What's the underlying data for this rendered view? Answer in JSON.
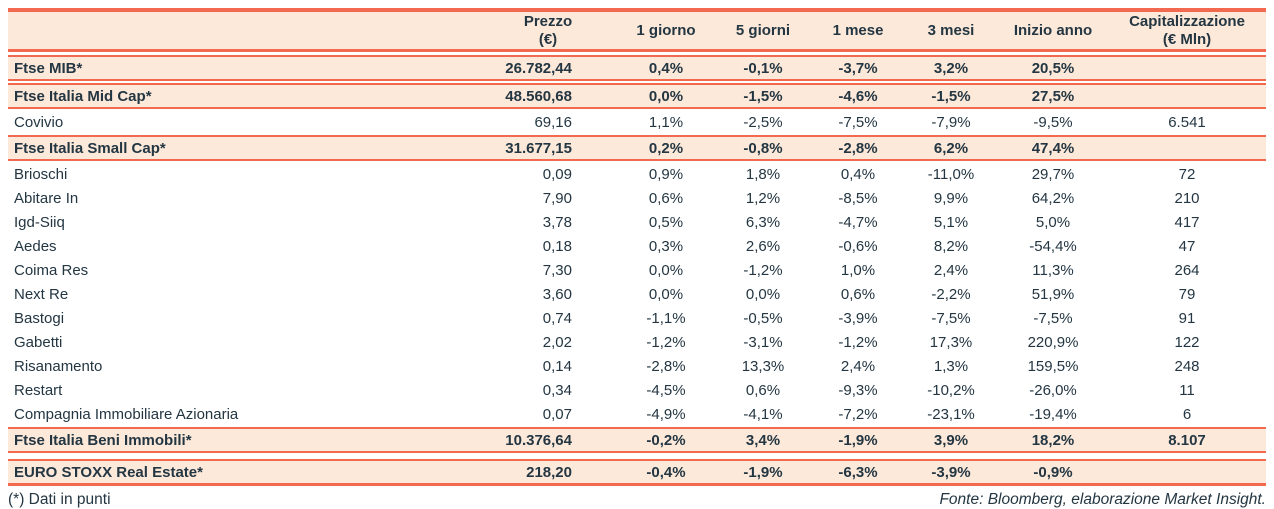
{
  "colors": {
    "accent": "#f26950",
    "row_highlight_bg": "#fce9da",
    "text": "#233642"
  },
  "table": {
    "columns": [
      {
        "key": "name",
        "label": "",
        "sublabel": ""
      },
      {
        "key": "prezzo",
        "label": "Prezzo",
        "sublabel": "(€)"
      },
      {
        "key": "g1",
        "label": "1 giorno",
        "sublabel": ""
      },
      {
        "key": "g5",
        "label": "5 giorni",
        "sublabel": ""
      },
      {
        "key": "m1",
        "label": "1 mese",
        "sublabel": ""
      },
      {
        "key": "m3",
        "label": "3 mesi",
        "sublabel": ""
      },
      {
        "key": "inizio",
        "label": "Inizio anno",
        "sublabel": ""
      },
      {
        "key": "cap",
        "label": "Capitalizzazione",
        "sublabel": "(€ Mln)"
      }
    ],
    "rows": [
      {
        "type": "index",
        "name": "Ftse MIB*",
        "prezzo": "26.782,44",
        "g1": "0,4%",
        "g5": "-0,1%",
        "m1": "-3,7%",
        "m3": "3,2%",
        "inizio": "20,5%",
        "cap": ""
      },
      {
        "type": "index",
        "name": "Ftse Italia Mid Cap*",
        "prezzo": "48.560,68",
        "g1": "0,0%",
        "g5": "-1,5%",
        "m1": "-4,6%",
        "m3": "-1,5%",
        "inizio": "27,5%",
        "cap": ""
      },
      {
        "type": "stock",
        "name": "Covivio",
        "prezzo": "69,16",
        "g1": "1,1%",
        "g5": "-2,5%",
        "m1": "-7,5%",
        "m3": "-7,9%",
        "inizio": "-9,5%",
        "cap": "6.541"
      },
      {
        "type": "index",
        "name": "Ftse Italia Small Cap*",
        "prezzo": "31.677,15",
        "g1": "0,2%",
        "g5": "-0,8%",
        "m1": "-2,8%",
        "m3": "6,2%",
        "inizio": "47,4%",
        "cap": ""
      },
      {
        "type": "stock",
        "name": "Brioschi",
        "prezzo": "0,09",
        "g1": "0,9%",
        "g5": "1,8%",
        "m1": "0,4%",
        "m3": "-11,0%",
        "inizio": "29,7%",
        "cap": "72"
      },
      {
        "type": "stock",
        "name": "Abitare In",
        "prezzo": "7,90",
        "g1": "0,6%",
        "g5": "1,2%",
        "m1": "-8,5%",
        "m3": "9,9%",
        "inizio": "64,2%",
        "cap": "210"
      },
      {
        "type": "stock",
        "name": "Igd-Siiq",
        "prezzo": "3,78",
        "g1": "0,5%",
        "g5": "6,3%",
        "m1": "-4,7%",
        "m3": "5,1%",
        "inizio": "5,0%",
        "cap": "417"
      },
      {
        "type": "stock",
        "name": "Aedes",
        "prezzo": "0,18",
        "g1": "0,3%",
        "g5": "2,6%",
        "m1": "-0,6%",
        "m3": "8,2%",
        "inizio": "-54,4%",
        "cap": "47"
      },
      {
        "type": "stock",
        "name": "Coima Res",
        "prezzo": "7,30",
        "g1": "0,0%",
        "g5": "-1,2%",
        "m1": "1,0%",
        "m3": "2,4%",
        "inizio": "11,3%",
        "cap": "264"
      },
      {
        "type": "stock",
        "name": "Next Re",
        "prezzo": "3,60",
        "g1": "0,0%",
        "g5": "0,0%",
        "m1": "0,6%",
        "m3": "-2,2%",
        "inizio": "51,9%",
        "cap": "79"
      },
      {
        "type": "stock",
        "name": "Bastogi",
        "prezzo": "0,74",
        "g1": "-1,1%",
        "g5": "-0,5%",
        "m1": "-3,9%",
        "m3": "-7,5%",
        "inizio": "-7,5%",
        "cap": "91"
      },
      {
        "type": "stock",
        "name": "Gabetti",
        "prezzo": "2,02",
        "g1": "-1,2%",
        "g5": "-3,1%",
        "m1": "-1,2%",
        "m3": "17,3%",
        "inizio": "220,9%",
        "cap": "122"
      },
      {
        "type": "stock",
        "name": "Risanamento",
        "prezzo": "0,14",
        "g1": "-2,8%",
        "g5": "13,3%",
        "m1": "2,4%",
        "m3": "1,3%",
        "inizio": "159,5%",
        "cap": "248"
      },
      {
        "type": "stock",
        "name": "Restart",
        "prezzo": "0,34",
        "g1": "-4,5%",
        "g5": "0,6%",
        "m1": "-9,3%",
        "m3": "-10,2%",
        "inizio": "-26,0%",
        "cap": "11"
      },
      {
        "type": "stock",
        "name": "Compagnia Immobiliare Azionaria",
        "prezzo": "0,07",
        "g1": "-4,9%",
        "g5": "-4,1%",
        "m1": "-7,2%",
        "m3": "-23,1%",
        "inizio": "-19,4%",
        "cap": "6"
      },
      {
        "type": "index",
        "name": "Ftse Italia Beni Immobili*",
        "prezzo": "10.376,64",
        "g1": "-0,2%",
        "g5": "3,4%",
        "m1": "-1,9%",
        "m3": "3,9%",
        "inizio": "18,2%",
        "cap": "8.107"
      },
      {
        "type": "index-separated",
        "name": "EURO STOXX Real Estate*",
        "prezzo": "218,20",
        "g1": "-0,4%",
        "g5": "-1,9%",
        "m1": "-6,3%",
        "m3": "-3,9%",
        "inizio": "-0,9%",
        "cap": ""
      }
    ]
  },
  "footer": {
    "note": "(*) Dati in punti",
    "source": "Fonte: Bloomberg, elaborazione Market Insight."
  }
}
